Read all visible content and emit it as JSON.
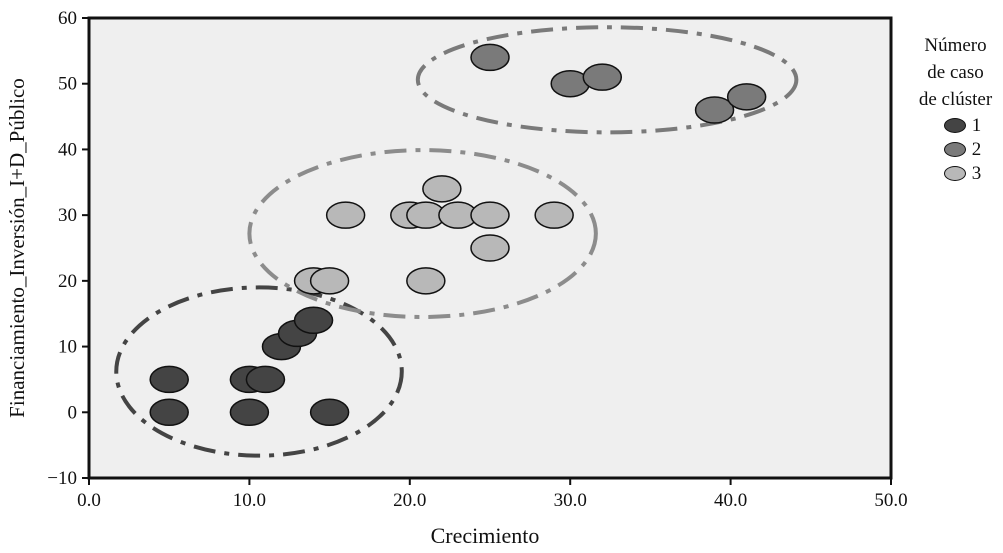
{
  "chart_data": {
    "type": "scatter",
    "title": "",
    "xlabel": "Crecimiento",
    "ylabel": "Financiamiento_Inversión_I+D_Público",
    "xlim": [
      0,
      50
    ],
    "ylim": [
      -10,
      60
    ],
    "x_ticks": [
      "0.0",
      "10.0",
      "20.0",
      "30.0",
      "40.0",
      "50.0"
    ],
    "y_ticks": [
      "-10",
      "0",
      "10",
      "20",
      "30",
      "40",
      "50",
      "60"
    ],
    "legend": {
      "title_lines": [
        "Número",
        "de caso",
        "de clúster"
      ],
      "position": "right"
    },
    "series": [
      {
        "name": "1",
        "color": "#444444",
        "points": [
          [
            5,
            5
          ],
          [
            5,
            0
          ],
          [
            10,
            0
          ],
          [
            15,
            0
          ],
          [
            10,
            5
          ],
          [
            11,
            5
          ],
          [
            12,
            10
          ],
          [
            13,
            12
          ],
          [
            14,
            14
          ]
        ]
      },
      {
        "name": "2",
        "color": "#7a7a7a",
        "points": [
          [
            25,
            54
          ],
          [
            30,
            50
          ],
          [
            32,
            51
          ],
          [
            39,
            46
          ],
          [
            41,
            48
          ]
        ]
      },
      {
        "name": "3",
        "color": "#b8b8b8",
        "points": [
          [
            14,
            20
          ],
          [
            15,
            20
          ],
          [
            16,
            30
          ],
          [
            20,
            30
          ],
          [
            21,
            30
          ],
          [
            22,
            34
          ],
          [
            23,
            30
          ],
          [
            25,
            30
          ],
          [
            25,
            25
          ],
          [
            29,
            30
          ],
          [
            21,
            20
          ]
        ]
      }
    ],
    "cluster_outlines": [
      {
        "cluster": "1",
        "color": "#444444",
        "center": [
          10.6,
          6.2
        ],
        "radius": [
          8.9,
          12.8
        ]
      },
      {
        "cluster": "2",
        "color": "#7a7a7a",
        "center": [
          32.3,
          50.6
        ],
        "radius": [
          11.8,
          8.0
        ]
      },
      {
        "cluster": "3",
        "color": "#8c8c8c",
        "center": [
          20.8,
          27.2
        ],
        "radius": [
          10.8,
          12.7
        ]
      }
    ]
  }
}
